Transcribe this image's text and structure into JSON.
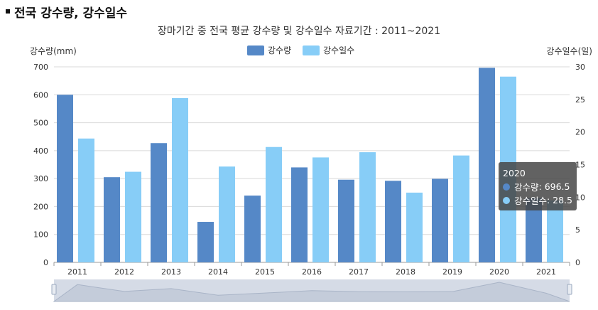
{
  "header": {
    "title": "전국 강수량, 강수일수"
  },
  "chart_data": {
    "type": "bar",
    "title": "장마기간 중 전국 평균 강수량 및 강수일수 자료기간 : 2011~2021",
    "ylabel": "강수량(mm)",
    "y2label": "강수일수(일)",
    "categories": [
      "2011",
      "2012",
      "2013",
      "2014",
      "2015",
      "2016",
      "2017",
      "2018",
      "2019",
      "2020",
      "2021"
    ],
    "ylim": [
      0,
      700
    ],
    "y2lim": [
      0,
      30
    ],
    "yticks": [
      0,
      100,
      200,
      300,
      400,
      500,
      600,
      700
    ],
    "y2ticks": [
      0,
      5,
      10,
      15,
      20,
      25,
      30
    ],
    "grid": true,
    "legend_position": "top-center",
    "series": [
      {
        "name": "강수량",
        "axis": "left",
        "color": "#5588c7",
        "values": [
          600,
          305,
          427,
          145,
          239,
          340,
          296,
          292,
          299,
          696.5,
          230
        ]
      },
      {
        "name": "강수일수",
        "axis": "right",
        "color": "#87cdf7",
        "values": [
          19,
          13.9,
          25.2,
          14.7,
          17.7,
          16.1,
          16.9,
          10.7,
          16.4,
          28.5,
          9.5
        ]
      }
    ],
    "tooltip": {
      "category": "2020",
      "rows": [
        {
          "label": "강수량",
          "value": "696.5",
          "color": "#5588c7"
        },
        {
          "label": "강수일수",
          "value": "28.5",
          "color": "#87cdf7"
        }
      ]
    },
    "navigator": {
      "handle_color": "#9aa8bf",
      "fill": "#d5dbe6"
    }
  }
}
